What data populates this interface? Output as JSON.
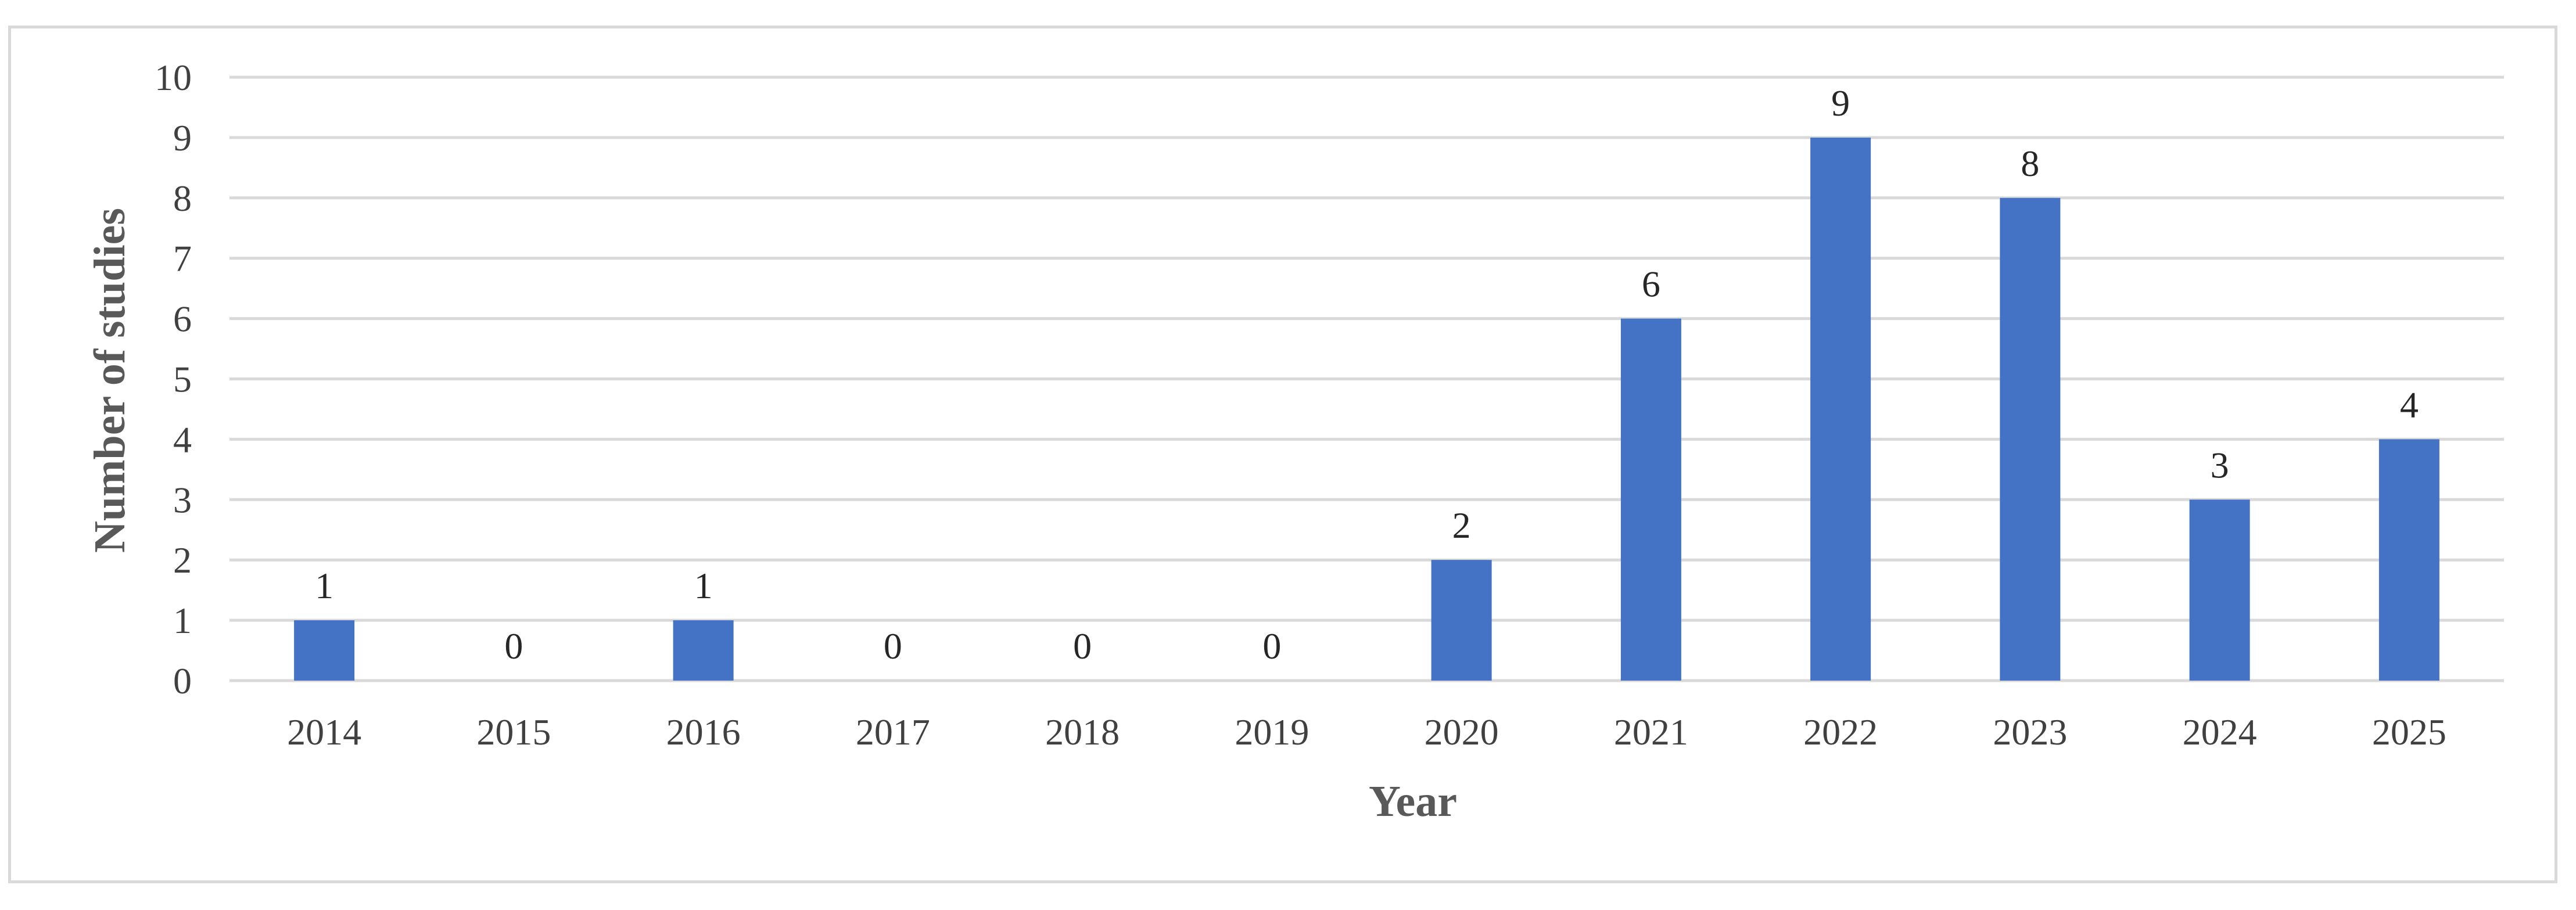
{
  "chart_data": {
    "type": "bar",
    "categories": [
      "2014",
      "2015",
      "2016",
      "2017",
      "2018",
      "2019",
      "2020",
      "2021",
      "2022",
      "2023",
      "2024",
      "2025"
    ],
    "values": [
      1,
      0,
      1,
      0,
      0,
      0,
      2,
      6,
      9,
      8,
      3,
      4
    ],
    "title": "",
    "xlabel": "Year",
    "ylabel": "Number of studies",
    "ylim": [
      0,
      10
    ],
    "yticks": [
      "0",
      "1",
      "2",
      "3",
      "4",
      "5",
      "6",
      "7",
      "8",
      "9",
      "10"
    ],
    "grid": true,
    "legend": "none",
    "bar_color": "#4472c4",
    "grid_color": "#d9d9d9"
  }
}
